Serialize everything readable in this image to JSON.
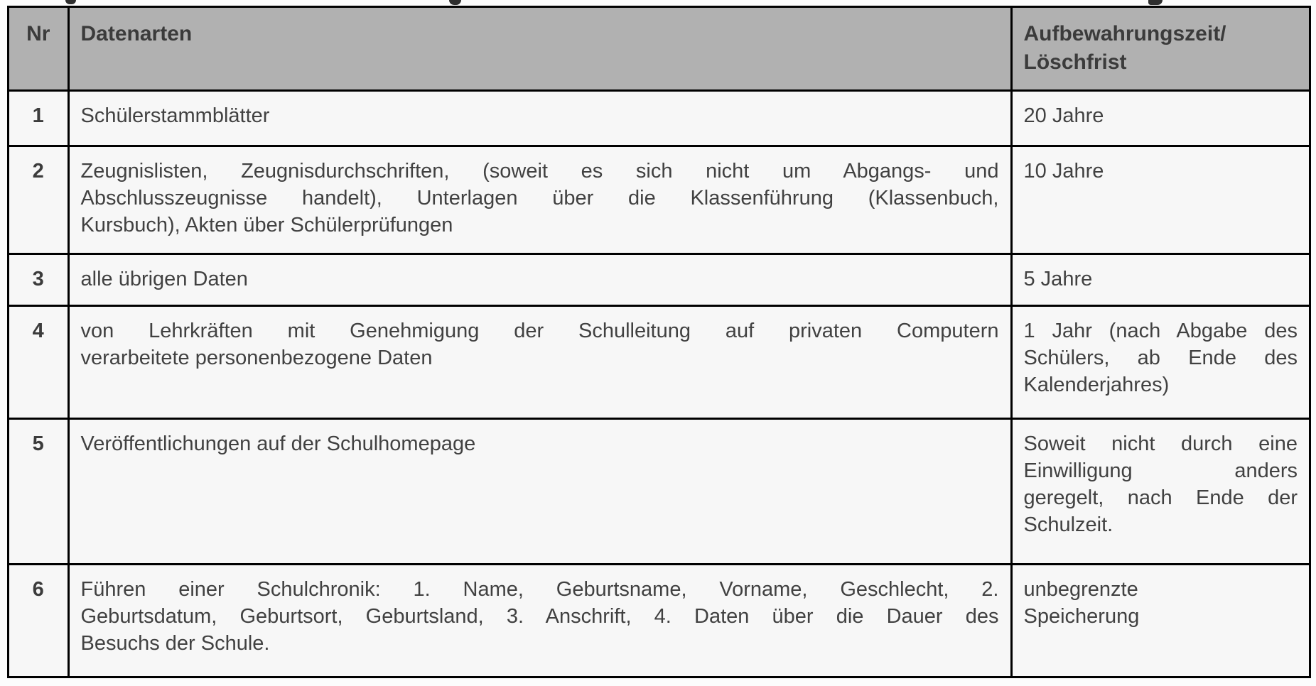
{
  "colors": {
    "header_bg": "#b1b1b1",
    "cell_bg": "#f7f7f7",
    "border": "#000000",
    "text": "#414141",
    "page_bg": "#fcfcfc"
  },
  "table": {
    "header": {
      "nr": "Nr",
      "datenarten": "Datenarten",
      "frist": "Aufbewahrungszeit/\nLöschfrist"
    },
    "rows": [
      {
        "nr": "1",
        "datenarten": "Schülerstammblätter",
        "frist": "20 Jahre"
      },
      {
        "nr": "2",
        "datenarten": "Zeugnislisten, Zeugnisdurchschriften, (soweit es sich nicht um Abgangs- und\nAbschlusszeugnisse handelt), Unterlagen über die Klassenführung (Klassenbuch,\nKursbuch), Akten über Schülerprüfungen",
        "frist": "10 Jahre"
      },
      {
        "nr": "3",
        "datenarten": "alle übrigen Daten",
        "frist": "5 Jahre"
      },
      {
        "nr": "4",
        "datenarten": "von Lehrkräften mit Genehmigung der Schulleitung auf privaten Computern\nverarbeitete personenbezogene Daten",
        "frist": "1 Jahr (nach Abgabe des\nSchülers, ab Ende des\nKalenderjahres)"
      },
      {
        "nr": "5",
        "datenarten": "Veröffentlichungen auf der Schulhomepage",
        "frist": "Soweit nicht durch eine\nEinwilligung anders\ngeregelt, nach Ende der\nSchulzeit."
      },
      {
        "nr": "6",
        "datenarten": "Führen einer Schulchronik: 1. Name, Geburtsname, Vorname, Geschlecht, 2.\nGeburtsdatum, Geburtsort, Geburtsland, 3. Anschrift, 4. Daten über die Dauer des\nBesuchs der Schule.",
        "frist": "unbegrenzte\nSpeicherung"
      }
    ]
  }
}
